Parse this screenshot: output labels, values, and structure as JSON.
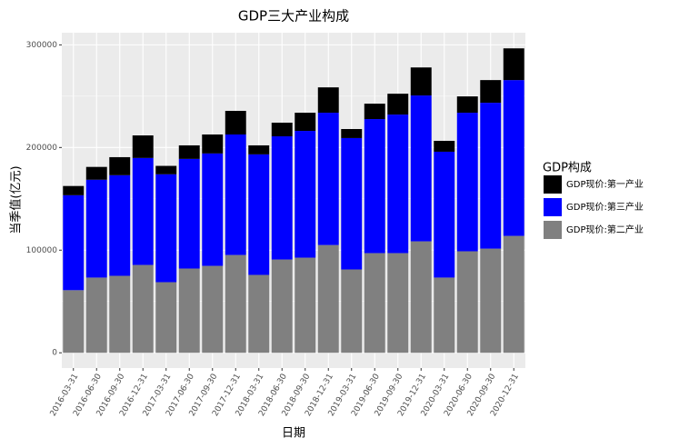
{
  "chart_data": {
    "type": "stacked-bar",
    "title": "GDP三大产业构成",
    "x_label": "日期",
    "y_label": "当季值(亿元)",
    "legend_title": "GDP构成",
    "categories": [
      "2016-03-31",
      "2016-06-30",
      "2016-09-30",
      "2016-12-31",
      "2017-03-31",
      "2017-06-30",
      "2017-09-30",
      "2017-12-31",
      "2018-03-31",
      "2018-06-30",
      "2018-09-30",
      "2018-12-31",
      "2019-03-31",
      "2019-06-30",
      "2019-09-30",
      "2019-12-31",
      "2020-03-31",
      "2020-06-30",
      "2020-09-30",
      "2020-12-31"
    ],
    "series": [
      {
        "name": "GDP现价:第一产业",
        "color": "#000000",
        "values": [
          9000,
          12500,
          17600,
          22000,
          8200,
          13200,
          18500,
          23000,
          8800,
          13300,
          17700,
          24700,
          8800,
          15000,
          20300,
          27300,
          10600,
          15900,
          22100,
          30900
        ]
      },
      {
        "name": "GDP现价:第三产业",
        "color": "#0000ff",
        "values": [
          92500,
          95300,
          98000,
          104200,
          105100,
          106800,
          109500,
          117400,
          117400,
          120000,
          123500,
          128900,
          128000,
          130600,
          135000,
          142100,
          122600,
          135000,
          142100,
          151800
        ]
      },
      {
        "name": "GDP现价:第二产业",
        "color": "#808080",
        "values": [
          61000,
          73300,
          75000,
          85600,
          68800,
          82100,
          84700,
          95300,
          75900,
          90900,
          92700,
          105000,
          81200,
          97100,
          97100,
          108600,
          73300,
          98900,
          101500,
          113900
        ]
      }
    ],
    "ylim": [
      -14850,
      311850
    ],
    "yticks": [
      0,
      100000,
      200000,
      300000
    ],
    "grid": true,
    "legend": "right"
  }
}
